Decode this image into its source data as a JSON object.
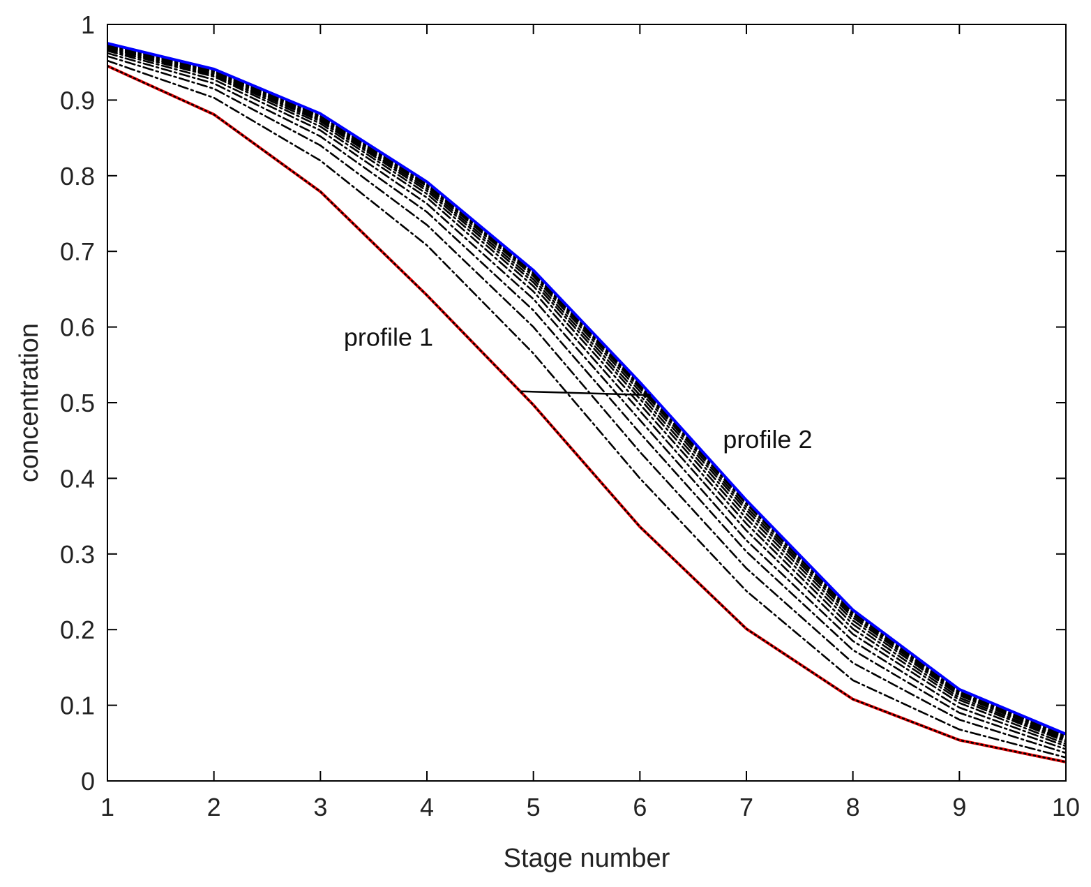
{
  "chart_data": {
    "type": "line",
    "title": "",
    "xlabel": "Stage number",
    "ylabel": "concentration",
    "xlim": [
      1,
      10
    ],
    "ylim": [
      0,
      1
    ],
    "xticks": [
      1,
      2,
      3,
      4,
      5,
      6,
      7,
      8,
      9,
      10
    ],
    "yticks": [
      0,
      0.1,
      0.2,
      0.3,
      0.4,
      0.5,
      0.6,
      0.7,
      0.8,
      0.9,
      1
    ],
    "grid": false,
    "legend": "none",
    "x": [
      1,
      2,
      3,
      4,
      5,
      6,
      7,
      8,
      9,
      10
    ],
    "series": [
      {
        "values": [
          0.945,
          0.881,
          0.779,
          0.642,
          0.497,
          0.336,
          0.201,
          0.108,
          0.054,
          0.025
        ],
        "color": "#e00000",
        "style": "solid"
      },
      {
        "values": [
          0.945,
          0.881,
          0.779,
          0.642,
          0.497,
          0.336,
          0.201,
          0.108,
          0.054,
          0.025
        ],
        "color": "#000000",
        "style": "dotted"
      },
      {
        "values": [
          0.952,
          0.903,
          0.82,
          0.708,
          0.565,
          0.4,
          0.251,
          0.133,
          0.068,
          0.031
        ],
        "color": "#000000",
        "style": "dashdot"
      },
      {
        "values": [
          0.958,
          0.915,
          0.84,
          0.735,
          0.6,
          0.435,
          0.281,
          0.156,
          0.081,
          0.037
        ],
        "color": "#000000",
        "style": "dashdot"
      },
      {
        "values": [
          0.962,
          0.922,
          0.852,
          0.752,
          0.622,
          0.46,
          0.303,
          0.173,
          0.09,
          0.042
        ],
        "color": "#000000",
        "style": "dashdot"
      },
      {
        "values": [
          0.965,
          0.927,
          0.86,
          0.763,
          0.637,
          0.477,
          0.318,
          0.185,
          0.097,
          0.046
        ],
        "color": "#000000",
        "style": "dashdot"
      },
      {
        "values": [
          0.967,
          0.931,
          0.865,
          0.771,
          0.647,
          0.489,
          0.331,
          0.194,
          0.103,
          0.049
        ],
        "color": "#000000",
        "style": "dashdot"
      },
      {
        "values": [
          0.969,
          0.933,
          0.869,
          0.776,
          0.654,
          0.498,
          0.34,
          0.201,
          0.107,
          0.052
        ],
        "color": "#000000",
        "style": "dashdot"
      },
      {
        "values": [
          0.97,
          0.935,
          0.872,
          0.78,
          0.659,
          0.505,
          0.347,
          0.207,
          0.11,
          0.054
        ],
        "color": "#000000",
        "style": "dashdot"
      },
      {
        "values": [
          0.971,
          0.937,
          0.874,
          0.783,
          0.663,
          0.51,
          0.353,
          0.212,
          0.113,
          0.056
        ],
        "color": "#000000",
        "style": "dashdot"
      },
      {
        "values": [
          0.972,
          0.938,
          0.876,
          0.786,
          0.667,
          0.515,
          0.358,
          0.216,
          0.115,
          0.057
        ],
        "color": "#000000",
        "style": "dashdot"
      },
      {
        "values": [
          0.973,
          0.939,
          0.878,
          0.788,
          0.67,
          0.519,
          0.362,
          0.219,
          0.117,
          0.059
        ],
        "color": "#000000",
        "style": "dashdot"
      },
      {
        "values": [
          0.974,
          0.94,
          0.879,
          0.79,
          0.672,
          0.522,
          0.366,
          0.222,
          0.119,
          0.06
        ],
        "color": "#000000",
        "style": "dashdot"
      },
      {
        "values": [
          0.975,
          0.941,
          0.881,
          0.791,
          0.674,
          0.525,
          0.369,
          0.224,
          0.12,
          0.061
        ],
        "color": "#000000",
        "style": "dashdot"
      },
      {
        "values": [
          0.975,
          0.941,
          0.882,
          0.792,
          0.675,
          0.527,
          0.371,
          0.226,
          0.121,
          0.062
        ],
        "color": "#0000ff",
        "style": "solid"
      }
    ],
    "annotations": [
      {
        "text": "profile 1",
        "x": 3.22,
        "y": 0.575
      },
      {
        "text": "profile 2",
        "x": 6.78,
        "y": 0.44
      }
    ],
    "arrow": {
      "from": [
        4.88,
        0.515
      ],
      "to": [
        6.1,
        0.51
      ]
    }
  }
}
